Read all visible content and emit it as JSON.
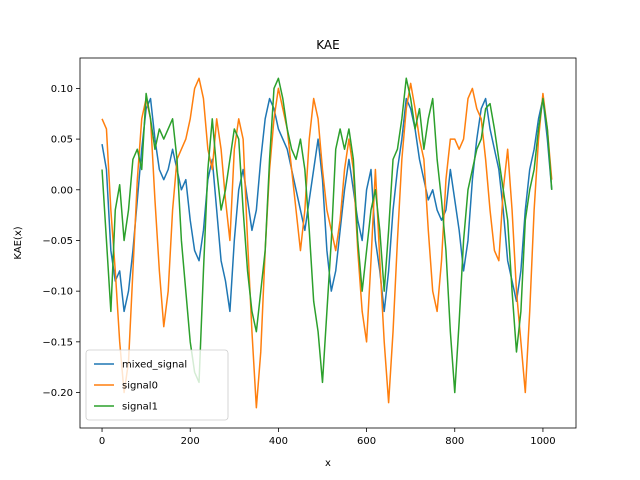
{
  "chart_data": {
    "type": "line",
    "title": "KAE",
    "xlabel": "x",
    "ylabel": "KAE(x)",
    "xlim": [
      -50,
      1075
    ],
    "ylim": [
      -0.235,
      0.13
    ],
    "x_ticks": [
      0,
      200,
      400,
      600,
      800,
      1000
    ],
    "y_ticks": [
      -0.2,
      -0.15,
      -0.1,
      -0.05,
      0.0,
      0.05,
      0.1
    ],
    "y_tick_labels": [
      "−0.20",
      "−0.15",
      "−0.10",
      "−0.05",
      "0.00",
      "0.05",
      "0.10"
    ],
    "grid": false,
    "legend_position": "lower-left",
    "series": [
      {
        "name": "mixed_signal",
        "color": "#1f77b4",
        "points": [
          [
            0,
            0.045
          ],
          [
            10,
            0.02
          ],
          [
            20,
            -0.06
          ],
          [
            30,
            -0.09
          ],
          [
            40,
            -0.08
          ],
          [
            50,
            -0.12
          ],
          [
            60,
            -0.1
          ],
          [
            70,
            -0.06
          ],
          [
            80,
            -0.01
          ],
          [
            90,
            0.04
          ],
          [
            100,
            0.08
          ],
          [
            110,
            0.09
          ],
          [
            120,
            0.05
          ],
          [
            130,
            0.02
          ],
          [
            140,
            0.01
          ],
          [
            150,
            0.02
          ],
          [
            160,
            0.04
          ],
          [
            170,
            0.02
          ],
          [
            180,
            0.0
          ],
          [
            190,
            0.01
          ],
          [
            200,
            -0.03
          ],
          [
            210,
            -0.06
          ],
          [
            220,
            -0.07
          ],
          [
            230,
            -0.04
          ],
          [
            240,
            0.01
          ],
          [
            250,
            0.03
          ],
          [
            260,
            -0.02
          ],
          [
            270,
            -0.07
          ],
          [
            280,
            -0.09
          ],
          [
            290,
            -0.12
          ],
          [
            300,
            -0.05
          ],
          [
            310,
            0.0
          ],
          [
            320,
            0.02
          ],
          [
            330,
            -0.01
          ],
          [
            340,
            -0.04
          ],
          [
            350,
            -0.02
          ],
          [
            360,
            0.03
          ],
          [
            370,
            0.07
          ],
          [
            380,
            0.09
          ],
          [
            390,
            0.08
          ],
          [
            400,
            0.06
          ],
          [
            410,
            0.05
          ],
          [
            420,
            0.04
          ],
          [
            430,
            0.02
          ],
          [
            440,
            0.0
          ],
          [
            450,
            -0.02
          ],
          [
            460,
            -0.04
          ],
          [
            470,
            -0.01
          ],
          [
            480,
            0.02
          ],
          [
            490,
            0.05
          ],
          [
            500,
            0.01
          ],
          [
            510,
            -0.06
          ],
          [
            520,
            -0.1
          ],
          [
            530,
            -0.08
          ],
          [
            540,
            -0.04
          ],
          [
            550,
            0.0
          ],
          [
            560,
            0.03
          ],
          [
            570,
            0.0
          ],
          [
            580,
            -0.03
          ],
          [
            590,
            -0.05
          ],
          [
            600,
            0.0
          ],
          [
            610,
            0.02
          ],
          [
            620,
            -0.05
          ],
          [
            630,
            -0.08
          ],
          [
            640,
            -0.12
          ],
          [
            650,
            -0.08
          ],
          [
            660,
            -0.02
          ],
          [
            670,
            0.02
          ],
          [
            680,
            0.05
          ],
          [
            690,
            0.09
          ],
          [
            700,
            0.08
          ],
          [
            710,
            0.06
          ],
          [
            720,
            0.03
          ],
          [
            730,
            0.01
          ],
          [
            740,
            -0.01
          ],
          [
            750,
            0.0
          ],
          [
            760,
            -0.02
          ],
          [
            770,
            -0.03
          ],
          [
            780,
            -0.02
          ],
          [
            790,
            0.02
          ],
          [
            800,
            -0.01
          ],
          [
            810,
            -0.04
          ],
          [
            820,
            -0.08
          ],
          [
            830,
            -0.05
          ],
          [
            840,
            0.01
          ],
          [
            850,
            0.05
          ],
          [
            860,
            0.08
          ],
          [
            870,
            0.09
          ],
          [
            880,
            0.06
          ],
          [
            890,
            0.04
          ],
          [
            900,
            0.02
          ],
          [
            910,
            -0.02
          ],
          [
            920,
            -0.07
          ],
          [
            930,
            -0.09
          ],
          [
            940,
            -0.11
          ],
          [
            950,
            -0.08
          ],
          [
            960,
            -0.02
          ],
          [
            970,
            0.02
          ],
          [
            980,
            0.04
          ],
          [
            990,
            0.07
          ],
          [
            1000,
            0.09
          ],
          [
            1010,
            0.05
          ],
          [
            1020,
            0.0
          ]
        ]
      },
      {
        "name": "signal0",
        "color": "#ff7f0e",
        "points": [
          [
            0,
            0.07
          ],
          [
            10,
            0.06
          ],
          [
            20,
            -0.02
          ],
          [
            30,
            -0.08
          ],
          [
            40,
            -0.15
          ],
          [
            50,
            -0.2
          ],
          [
            60,
            -0.17
          ],
          [
            70,
            -0.08
          ],
          [
            80,
            0.01
          ],
          [
            90,
            0.07
          ],
          [
            100,
            0.09
          ],
          [
            110,
            0.07
          ],
          [
            120,
            -0.01
          ],
          [
            130,
            -0.08
          ],
          [
            140,
            -0.135
          ],
          [
            150,
            -0.1
          ],
          [
            160,
            -0.02
          ],
          [
            170,
            0.03
          ],
          [
            180,
            0.04
          ],
          [
            190,
            0.05
          ],
          [
            200,
            0.07
          ],
          [
            210,
            0.1
          ],
          [
            220,
            0.11
          ],
          [
            230,
            0.09
          ],
          [
            240,
            0.04
          ],
          [
            250,
            0.02
          ],
          [
            260,
            0.07
          ],
          [
            270,
            0.04
          ],
          [
            280,
            -0.01
          ],
          [
            290,
            -0.05
          ],
          [
            300,
            0.04
          ],
          [
            310,
            0.07
          ],
          [
            320,
            0.05
          ],
          [
            330,
            -0.05
          ],
          [
            340,
            -0.14
          ],
          [
            350,
            -0.215
          ],
          [
            360,
            -0.16
          ],
          [
            370,
            -0.06
          ],
          [
            380,
            0.02
          ],
          [
            390,
            0.07
          ],
          [
            400,
            0.1
          ],
          [
            410,
            0.08
          ],
          [
            420,
            0.06
          ],
          [
            430,
            0.02
          ],
          [
            440,
            -0.02
          ],
          [
            450,
            -0.06
          ],
          [
            460,
            -0.02
          ],
          [
            470,
            0.05
          ],
          [
            480,
            0.09
          ],
          [
            490,
            0.07
          ],
          [
            500,
            0.02
          ],
          [
            510,
            -0.02
          ],
          [
            520,
            -0.04
          ],
          [
            530,
            -0.06
          ],
          [
            540,
            -0.03
          ],
          [
            550,
            0.02
          ],
          [
            560,
            0.05
          ],
          [
            570,
            0.02
          ],
          [
            580,
            -0.06
          ],
          [
            590,
            -0.12
          ],
          [
            600,
            -0.15
          ],
          [
            610,
            -0.07
          ],
          [
            620,
            0.02
          ],
          [
            630,
            -0.07
          ],
          [
            640,
            -0.15
          ],
          [
            650,
            -0.21
          ],
          [
            660,
            -0.14
          ],
          [
            670,
            -0.05
          ],
          [
            680,
            0.03
          ],
          [
            690,
            0.08
          ],
          [
            700,
            0.105
          ],
          [
            710,
            0.08
          ],
          [
            720,
            0.05
          ],
          [
            730,
            0.03
          ],
          [
            740,
            -0.04
          ],
          [
            750,
            -0.1
          ],
          [
            760,
            -0.12
          ],
          [
            770,
            -0.07
          ],
          [
            780,
            0.01
          ],
          [
            790,
            0.05
          ],
          [
            800,
            0.05
          ],
          [
            810,
            0.04
          ],
          [
            820,
            0.05
          ],
          [
            830,
            0.09
          ],
          [
            840,
            0.1
          ],
          [
            850,
            0.08
          ],
          [
            860,
            0.07
          ],
          [
            870,
            0.03
          ],
          [
            880,
            -0.02
          ],
          [
            890,
            -0.06
          ],
          [
            900,
            -0.07
          ],
          [
            910,
            0.0
          ],
          [
            920,
            0.04
          ],
          [
            930,
            -0.02
          ],
          [
            940,
            -0.1
          ],
          [
            950,
            -0.15
          ],
          [
            960,
            -0.2
          ],
          [
            970,
            -0.12
          ],
          [
            980,
            -0.02
          ],
          [
            990,
            0.05
          ],
          [
            1000,
            0.095
          ],
          [
            1010,
            0.06
          ],
          [
            1020,
            0.01
          ]
        ]
      },
      {
        "name": "signal1",
        "color": "#2ca02c",
        "points": [
          [
            0,
            0.02
          ],
          [
            10,
            -0.05
          ],
          [
            20,
            -0.12
          ],
          [
            30,
            -0.02
          ],
          [
            40,
            0.005
          ],
          [
            50,
            -0.05
          ],
          [
            60,
            -0.02
          ],
          [
            70,
            0.03
          ],
          [
            80,
            0.04
          ],
          [
            90,
            0.02
          ],
          [
            100,
            0.095
          ],
          [
            110,
            0.07
          ],
          [
            120,
            0.04
          ],
          [
            130,
            0.06
          ],
          [
            140,
            0.05
          ],
          [
            150,
            0.06
          ],
          [
            160,
            0.07
          ],
          [
            170,
            0.03
          ],
          [
            180,
            -0.05
          ],
          [
            190,
            -0.1
          ],
          [
            200,
            -0.15
          ],
          [
            210,
            -0.18
          ],
          [
            220,
            -0.19
          ],
          [
            230,
            -0.08
          ],
          [
            240,
            0.02
          ],
          [
            250,
            0.07
          ],
          [
            260,
            0.02
          ],
          [
            270,
            -0.02
          ],
          [
            280,
            0.0
          ],
          [
            290,
            0.03
          ],
          [
            300,
            0.06
          ],
          [
            310,
            0.05
          ],
          [
            320,
            -0.02
          ],
          [
            330,
            -0.08
          ],
          [
            340,
            -0.12
          ],
          [
            350,
            -0.14
          ],
          [
            360,
            -0.1
          ],
          [
            370,
            -0.06
          ],
          [
            380,
            0.03
          ],
          [
            390,
            0.1
          ],
          [
            400,
            0.11
          ],
          [
            410,
            0.09
          ],
          [
            420,
            0.06
          ],
          [
            430,
            0.04
          ],
          [
            440,
            0.03
          ],
          [
            450,
            0.05
          ],
          [
            460,
            0.02
          ],
          [
            470,
            -0.04
          ],
          [
            480,
            -0.11
          ],
          [
            490,
            -0.14
          ],
          [
            500,
            -0.19
          ],
          [
            510,
            -0.12
          ],
          [
            520,
            -0.05
          ],
          [
            530,
            0.04
          ],
          [
            540,
            0.06
          ],
          [
            550,
            0.04
          ],
          [
            560,
            0.06
          ],
          [
            570,
            0.03
          ],
          [
            580,
            -0.05
          ],
          [
            590,
            -0.1
          ],
          [
            600,
            -0.06
          ],
          [
            610,
            -0.02
          ],
          [
            620,
            0.0
          ],
          [
            630,
            -0.04
          ],
          [
            640,
            -0.1
          ],
          [
            650,
            -0.04
          ],
          [
            660,
            0.03
          ],
          [
            670,
            0.04
          ],
          [
            680,
            0.07
          ],
          [
            690,
            0.11
          ],
          [
            700,
            0.09
          ],
          [
            710,
            0.06
          ],
          [
            720,
            0.08
          ],
          [
            730,
            0.04
          ],
          [
            740,
            0.07
          ],
          [
            750,
            0.09
          ],
          [
            760,
            0.03
          ],
          [
            770,
            -0.01
          ],
          [
            780,
            -0.06
          ],
          [
            790,
            -0.14
          ],
          [
            800,
            -0.2
          ],
          [
            810,
            -0.13
          ],
          [
            820,
            -0.05
          ],
          [
            830,
            0.0
          ],
          [
            840,
            0.02
          ],
          [
            850,
            0.04
          ],
          [
            860,
            0.05
          ],
          [
            870,
            0.08
          ],
          [
            880,
            0.085
          ],
          [
            890,
            0.06
          ],
          [
            900,
            0.03
          ],
          [
            910,
            0.0
          ],
          [
            920,
            -0.03
          ],
          [
            930,
            -0.1
          ],
          [
            940,
            -0.16
          ],
          [
            950,
            -0.12
          ],
          [
            960,
            -0.03
          ],
          [
            970,
            0.0
          ],
          [
            980,
            0.02
          ],
          [
            990,
            0.06
          ],
          [
            1000,
            0.09
          ],
          [
            1010,
            0.06
          ],
          [
            1020,
            0.0
          ]
        ]
      }
    ]
  }
}
